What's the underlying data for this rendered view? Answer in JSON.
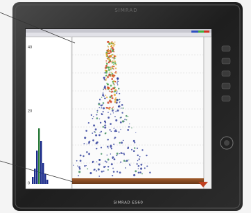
{
  "device": {
    "brand_top": "SIMRAD",
    "model_label": "SIMRAD ES60"
  },
  "screen": {
    "depth_labels": [
      "40",
      "20",
      "0"
    ]
  }
}
